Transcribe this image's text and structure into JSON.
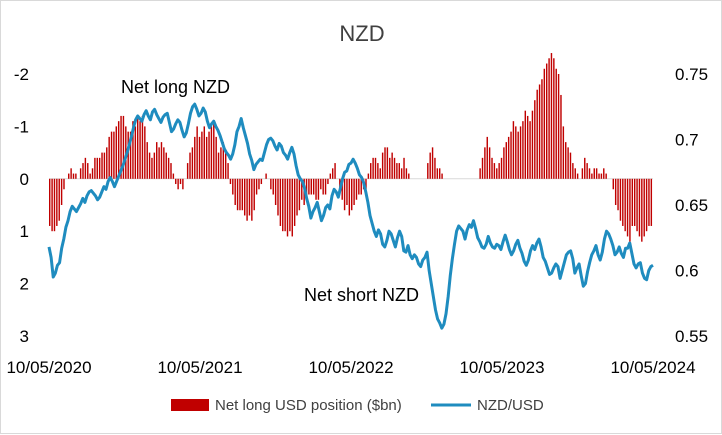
{
  "chart_data": {
    "type": "bar+line",
    "title": "NZD",
    "x_tick_labels": [
      "10/05/2020",
      "10/05/2021",
      "10/05/2022",
      "10/05/2023",
      "10/05/2024"
    ],
    "left_axis": {
      "ticks": [
        -2,
        -1,
        0,
        1,
        2,
        3
      ],
      "tick_labels": [
        "-2",
        "-1",
        "0",
        "1",
        "2",
        "3"
      ],
      "range": [
        -2,
        3
      ],
      "inverted": true
    },
    "right_axis": {
      "ticks": [
        0.55,
        0.6,
        0.65,
        0.7,
        0.75
      ],
      "tick_labels": [
        "0.55",
        "0.6",
        "0.65",
        "0.7",
        "0.75"
      ],
      "range": [
        0.55,
        0.75
      ]
    },
    "annotations": {
      "net_long": "Net long NZD",
      "net_short": "Net short NZD"
    },
    "bar_series": {
      "name": "Net long USD position ($bn)",
      "color": "#c00000",
      "values": [
        0.9,
        1.0,
        1.0,
        0.9,
        0.8,
        0.5,
        0.2,
        0.0,
        -0.1,
        -0.2,
        -0.1,
        -0.1,
        0.0,
        -0.2,
        -0.3,
        -0.4,
        -0.3,
        -0.1,
        -0.2,
        -0.4,
        -0.4,
        -0.4,
        -0.5,
        -0.5,
        -0.6,
        -0.8,
        -0.9,
        -0.9,
        -1.0,
        -1.1,
        -1.2,
        -1.2,
        -1.0,
        -0.9,
        -0.9,
        -1.1,
        -1.0,
        -1.2,
        -1.1,
        -1.2,
        -1.0,
        -0.7,
        -0.5,
        -0.4,
        -0.5,
        -0.7,
        -0.6,
        -0.7,
        -0.6,
        -0.5,
        -0.4,
        -0.3,
        -0.1,
        0.1,
        0.2,
        0.1,
        0.2,
        0.0,
        -0.3,
        -0.5,
        -0.6,
        -0.8,
        -1.0,
        -0.8,
        -0.9,
        -1.0,
        -0.8,
        -0.9,
        -1.0,
        -1.1,
        -0.8,
        -0.5,
        -0.6,
        -0.7,
        -0.5,
        -0.3,
        0.1,
        0.3,
        0.5,
        0.6,
        0.6,
        0.6,
        0.7,
        0.8,
        0.7,
        0.8,
        0.6,
        0.3,
        0.2,
        0.1,
        0.0,
        -0.1,
        0.0,
        0.2,
        0.3,
        0.5,
        0.7,
        0.9,
        1.0,
        1.0,
        1.1,
        1.0,
        1.1,
        0.9,
        0.7,
        0.6,
        0.4,
        0.5,
        0.4,
        0.3,
        0.3,
        0.3,
        0.4,
        0.4,
        0.2,
        0.3,
        0.3,
        0.1,
        -0.1,
        -0.2,
        -0.3,
        0.0,
        0.3,
        0.4,
        0.6,
        0.5,
        0.7,
        0.6,
        0.5,
        0.4,
        0.3,
        0.3,
        0.2,
        0.2,
        -0.1,
        -0.3,
        -0.4,
        -0.4,
        -0.3,
        -0.2,
        -0.5,
        -0.6,
        -0.6,
        -0.4,
        -0.5,
        -0.4,
        -0.3,
        -0.3,
        -0.2,
        -0.4,
        -0.2,
        -0.1,
        0.0,
        0.0,
        0.0,
        0.0,
        0.0,
        0.0,
        0.0,
        -0.3,
        -0.5,
        -0.6,
        -0.4,
        -0.2,
        -0.2,
        -0.1,
        0.0,
        0.0,
        0.0,
        0.0,
        0.0,
        0.0,
        0.0,
        0.0,
        0.0,
        0.0,
        0.0,
        0.0,
        0.0,
        0.0,
        0.0,
        -0.2,
        -0.4,
        -0.6,
        -0.8,
        -0.6,
        -0.4,
        -0.3,
        -0.2,
        -0.3,
        -0.4,
        -0.6,
        -0.7,
        -0.8,
        -0.9,
        -1.1,
        -1.0,
        -0.9,
        -1.0,
        -1.1,
        -1.3,
        -1.2,
        -1.1,
        -1.3,
        -1.5,
        -1.7,
        -1.8,
        -1.9,
        -2.1,
        -2.2,
        -2.3,
        -2.4,
        -2.3,
        -2.1,
        -2.0,
        -1.6,
        -1.0,
        -0.7,
        -0.6,
        -0.5,
        -0.3,
        -0.2,
        -0.1,
        0.0,
        -0.2,
        -0.4,
        -0.3,
        -0.2,
        -0.1,
        -0.2,
        -0.2,
        -0.1,
        -0.1,
        -0.2,
        -0.1,
        0.0,
        0.0,
        0.2,
        0.5,
        0.6,
        0.8,
        0.9,
        1.0,
        1.1,
        1.2,
        0.9,
        0.9,
        1.0,
        1.1,
        1.2,
        1.1,
        1.0,
        0.9,
        0.9
      ],
      "note": "bar values in $bn, positive = net long USD (plotted downward)"
    },
    "line_series": {
      "name": "NZD/USD",
      "color": "#1f8cbf",
      "values": [
        0.618,
        0.61,
        0.595,
        0.598,
        0.604,
        0.606,
        0.617,
        0.624,
        0.633,
        0.638,
        0.645,
        0.649,
        0.647,
        0.645,
        0.648,
        0.651,
        0.655,
        0.652,
        0.657,
        0.66,
        0.661,
        0.659,
        0.657,
        0.654,
        0.656,
        0.66,
        0.664,
        0.662,
        0.668,
        0.671,
        0.668,
        0.664,
        0.668,
        0.672,
        0.676,
        0.68,
        0.685,
        0.69,
        0.696,
        0.702,
        0.709,
        0.715,
        0.718,
        0.716,
        0.714,
        0.719,
        0.722,
        0.718,
        0.715,
        0.721,
        0.723,
        0.719,
        0.716,
        0.713,
        0.717,
        0.719,
        0.72,
        0.713,
        0.706,
        0.708,
        0.712,
        0.715,
        0.713,
        0.707,
        0.702,
        0.705,
        0.712,
        0.72,
        0.725,
        0.727,
        0.723,
        0.718,
        0.72,
        0.724,
        0.721,
        0.714,
        0.709,
        0.712,
        0.714,
        0.71,
        0.707,
        0.703,
        0.698,
        0.693,
        0.69,
        0.688,
        0.685,
        0.689,
        0.696,
        0.706,
        0.71,
        0.716,
        0.709,
        0.703,
        0.697,
        0.689,
        0.684,
        0.677,
        0.681,
        0.683,
        0.685,
        0.684,
        0.69,
        0.696,
        0.7,
        0.701,
        0.699,
        0.695,
        0.692,
        0.697,
        0.695,
        0.69,
        0.688,
        0.685,
        0.69,
        0.694,
        0.689,
        0.68,
        0.673,
        0.67,
        0.668,
        0.663,
        0.655,
        0.649,
        0.64,
        0.645,
        0.648,
        0.652,
        0.645,
        0.638,
        0.642,
        0.648,
        0.65,
        0.647,
        0.657,
        0.662,
        0.66,
        0.656,
        0.663,
        0.67,
        0.675,
        0.676,
        0.681,
        0.682,
        0.685,
        0.682,
        0.678,
        0.673,
        0.671,
        0.667,
        0.66,
        0.652,
        0.642,
        0.636,
        0.63,
        0.626,
        0.631,
        0.628,
        0.62,
        0.618,
        0.623,
        0.63,
        0.628,
        0.623,
        0.618,
        0.625,
        0.63,
        0.626,
        0.615,
        0.614,
        0.619,
        0.612,
        0.609,
        0.612,
        0.61,
        0.605,
        0.603,
        0.608,
        0.61,
        0.614,
        0.6,
        0.59,
        0.58,
        0.57,
        0.563,
        0.56,
        0.556,
        0.559,
        0.567,
        0.58,
        0.596,
        0.609,
        0.62,
        0.63,
        0.634,
        0.632,
        0.63,
        0.624,
        0.631,
        0.635,
        0.633,
        0.638,
        0.632,
        0.625,
        0.622,
        0.618,
        0.617,
        0.62,
        0.626,
        0.621,
        0.618,
        0.617,
        0.62,
        0.619,
        0.616,
        0.622,
        0.627,
        0.622,
        0.616,
        0.612,
        0.615,
        0.62,
        0.623,
        0.617,
        0.613,
        0.607,
        0.604,
        0.608,
        0.615,
        0.619,
        0.616,
        0.621,
        0.624,
        0.618,
        0.61,
        0.607,
        0.602,
        0.597,
        0.598,
        0.602,
        0.605,
        0.603,
        0.594,
        0.6,
        0.606,
        0.612,
        0.614,
        0.615,
        0.609,
        0.598,
        0.602,
        0.605,
        0.596,
        0.588,
        0.59,
        0.599,
        0.606,
        0.612,
        0.615,
        0.619,
        0.612,
        0.608,
        0.614,
        0.624,
        0.63,
        0.628,
        0.624,
        0.619,
        0.612,
        0.614,
        0.618,
        0.613,
        0.61,
        0.617,
        0.617,
        0.621,
        0.613,
        0.605,
        0.602,
        0.605,
        0.606,
        0.598,
        0.594,
        0.593,
        0.6,
        0.603,
        0.604
      ]
    },
    "legend": {
      "position": "bottom",
      "entries": [
        "Net long USD position ($bn)",
        "NZD/USD"
      ]
    },
    "grid": false
  }
}
